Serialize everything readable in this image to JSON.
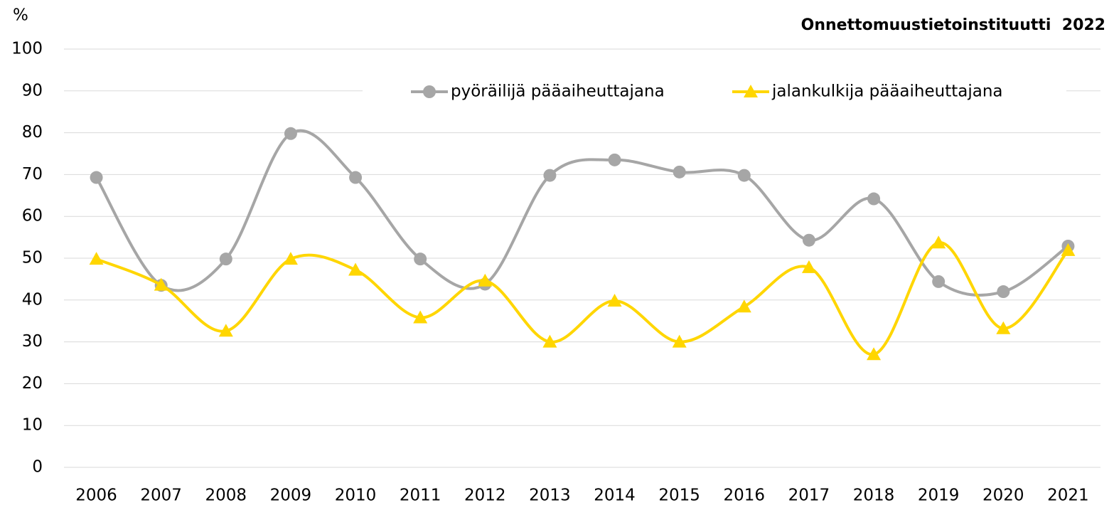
{
  "chart_data": {
    "type": "line",
    "source": "Onnettomuustietoinstituutti  2022",
    "y_label": "%",
    "categories": [
      "2006",
      "2007",
      "2008",
      "2009",
      "2010",
      "2011",
      "2012",
      "2013",
      "2014",
      "2015",
      "2016",
      "2017",
      "2018",
      "2019",
      "2020",
      "2021"
    ],
    "series": [
      {
        "name": "pyöräilijä pääaiheuttajana",
        "color": "#a6a6a6",
        "marker": "circle",
        "values": [
          69.3,
          43.5,
          49.8,
          79.8,
          69.3,
          49.8,
          43.8,
          69.8,
          73.5,
          70.6,
          69.8,
          54.3,
          64.2,
          44.4,
          42.0,
          52.9
        ]
      },
      {
        "name": "jalankulkija pääaiheuttajana",
        "color": "#ffd600",
        "marker": "triangle",
        "values": [
          49.8,
          43.6,
          32.6,
          49.8,
          47.2,
          35.8,
          44.6,
          30.0,
          39.8,
          30.0,
          38.4,
          47.8,
          27.0,
          53.7,
          33.2,
          51.9
        ]
      }
    ],
    "ylim": [
      0,
      100
    ],
    "yticks": [
      0,
      10,
      20,
      30,
      40,
      50,
      60,
      70,
      80,
      90,
      100
    ],
    "grid": true,
    "smooth": true,
    "legend": "top"
  }
}
